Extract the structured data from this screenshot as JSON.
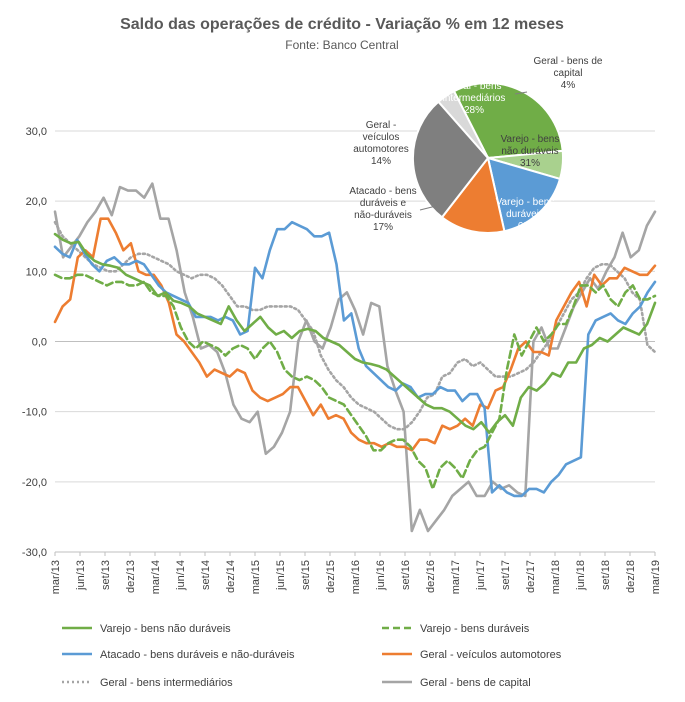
{
  "chart_data": {
    "type": "line",
    "title": "Saldo das operações de crédito - Variação % em 12 meses",
    "subtitle": "Fonte: Banco Central",
    "ylim": [
      -30,
      30
    ],
    "yticks": [
      30,
      20,
      10,
      0,
      -10,
      -20,
      -30
    ],
    "ytick_labels": [
      "30,0",
      "20,0",
      "10,0",
      "0,0",
      "-10,0",
      "-20,0",
      "-30,0"
    ],
    "x_labels": [
      "mar/13",
      "jun/13",
      "set/13",
      "dez/13",
      "mar/14",
      "jun/14",
      "set/14",
      "dez/14",
      "mar/15",
      "jun/15",
      "set/15",
      "dez/15",
      "mar/16",
      "jun/16",
      "set/16",
      "dez/16",
      "mar/17",
      "jun/17",
      "set/17",
      "dez/17",
      "mar/18",
      "jun/18",
      "set/18",
      "dez/18",
      "mar/19"
    ],
    "grid": true,
    "legend_position": "bottom",
    "series": [
      {
        "name": "Varejo - bens não duráveis",
        "color": "#70AD47",
        "dash": "solid",
        "values": [
          15.3,
          14.5,
          14,
          14.2,
          12.5,
          11.5,
          11,
          10.8,
          10.5,
          9.5,
          9,
          8.5,
          8,
          6.5,
          7,
          5.8,
          5.5,
          5,
          4,
          3.5,
          3,
          2.5,
          5,
          3,
          1.5,
          2.5,
          3.5,
          2,
          1,
          1.5,
          0.5,
          1.5,
          1.8,
          1.5,
          0.5,
          0,
          -0.5,
          -1.5,
          -2.5,
          -3,
          -3.2,
          -3.5,
          -4,
          -5,
          -6,
          -7,
          -8,
          -9,
          -9.5,
          -9.5,
          -10,
          -11,
          -12,
          -12.5,
          -11.5,
          -13,
          -11.5,
          -10.5,
          -12,
          -8,
          -6.5,
          -7,
          -6,
          -4.5,
          -5,
          -3,
          -3,
          -1,
          -0.5,
          0.5,
          0,
          1,
          2,
          1.5,
          1,
          2.5,
          5.5
        ]
      },
      {
        "name": "Varejo - bens duráveis",
        "color": "#70AD47",
        "dash": "dashed",
        "values": [
          9.5,
          9,
          9,
          9.5,
          9.5,
          9,
          8.5,
          8,
          8.5,
          8.5,
          8,
          8,
          8.5,
          7,
          6.5,
          6.5,
          5,
          2,
          0,
          -1,
          0,
          -0.5,
          -1,
          -2,
          -1,
          -0.5,
          -1,
          -2.5,
          -1,
          0,
          -1.5,
          -4,
          -5,
          -5.5,
          -5,
          -5.5,
          -6.5,
          -8,
          -8.5,
          -9,
          -10.5,
          -12,
          -13.5,
          -15.5,
          -15.5,
          -14.5,
          -14,
          -14,
          -15,
          -17,
          -18,
          -21,
          -18,
          -17,
          -18,
          -19.5,
          -17,
          -15.5,
          -15,
          -13,
          -11,
          -4,
          1,
          -2,
          0,
          2,
          0,
          1,
          2.5,
          2.5,
          5,
          8,
          8,
          7,
          8,
          6,
          5,
          7,
          8,
          6,
          6,
          6.5
        ]
      },
      {
        "name": "Atacado - bens duráveis e não-duráveis",
        "color": "#5B9BD5",
        "dash": "solid",
        "values": [
          13.5,
          12.5,
          12,
          14.5,
          12.5,
          11,
          10,
          11.5,
          12,
          11,
          11,
          11.5,
          11,
          9.5,
          8,
          7,
          6.5,
          6,
          5.5,
          3.5,
          3.5,
          3.5,
          3,
          3.5,
          3,
          1,
          1.5,
          10.5,
          9,
          13,
          16,
          16,
          17,
          16.5,
          16,
          15,
          15,
          15.5,
          11,
          3,
          4,
          -1,
          -3.5,
          -4.5,
          -5.5,
          -6.5,
          -7,
          -6,
          -6.5,
          -8,
          -7.5,
          -7.5,
          -6.5,
          -7,
          -7,
          -8.5,
          -7.5,
          -7.5,
          -9.5,
          -21.5,
          -20.5,
          -21.5,
          -22,
          -22,
          -21,
          -21,
          -21.5,
          -20,
          -19,
          -17.5,
          -17,
          -16.5,
          1,
          3,
          3.5,
          4,
          3,
          2.5,
          4,
          5,
          7,
          8.5
        ]
      },
      {
        "name": "Geral - veículos automotores",
        "color": "#ED7D31",
        "dash": "solid",
        "values": [
          2.8,
          5,
          6,
          12,
          13,
          12,
          17.5,
          17.5,
          15.5,
          13,
          14,
          10,
          9.5,
          9.5,
          8,
          5.5,
          1,
          0,
          -1.5,
          -3,
          -5,
          -4,
          -4.5,
          -5,
          -4,
          -4.5,
          -7,
          -8,
          -8.5,
          -8,
          -7.5,
          -6.5,
          -6.5,
          -8.5,
          -10.5,
          -9,
          -11,
          -10.5,
          -11,
          -13,
          -14,
          -14.5,
          -14.5,
          -15,
          -14.5,
          -15,
          -15,
          -15.5,
          -14,
          -14,
          -14.5,
          -12,
          -12.5,
          -12,
          -11,
          -12,
          -9,
          -9.5,
          -7,
          -6.5,
          -4,
          -1,
          0,
          -1.5,
          -1.5,
          -2,
          3,
          5,
          7,
          8.5,
          5,
          9.5,
          8,
          9,
          9,
          10.5,
          10,
          9.5,
          9.5,
          10.8
        ]
      },
      {
        "name": "Geral - bens intermediários",
        "color": "#A5A5A5",
        "dash": "dotted",
        "values": [
          17,
          15,
          14,
          13,
          12,
          11,
          10.5,
          10,
          10,
          11,
          12,
          12.5,
          12.5,
          12,
          11.5,
          11,
          10,
          9.5,
          9,
          9.5,
          9.5,
          9,
          8,
          6.5,
          5,
          5,
          4.5,
          4.5,
          5,
          5,
          5,
          5,
          4.5,
          3,
          1.5,
          -2,
          -4,
          -5.5,
          -6.5,
          -8,
          -9,
          -9.5,
          -10,
          -11,
          -12,
          -12.5,
          -12.5,
          -11.5,
          -10,
          -8,
          -7.5,
          -5,
          -4.5,
          -3,
          -2.5,
          -3.5,
          -3,
          -4,
          -5,
          -5,
          -5,
          -4.5,
          -4,
          -3,
          -1.5,
          0,
          2,
          4,
          6,
          7,
          9,
          10.5,
          11,
          11,
          10,
          9,
          7,
          6,
          -0.5,
          -1.5
        ]
      },
      {
        "name": "Geral - bens de capital",
        "color": "#A5A5A5",
        "dash": "solid",
        "values": [
          18.5,
          12,
          13.5,
          15,
          17,
          18.5,
          20.5,
          18,
          22,
          21.5,
          21.5,
          20.5,
          22.5,
          17.5,
          17.5,
          13,
          7,
          3.5,
          -1,
          -0.5,
          -1.5,
          -4.5,
          -9,
          -11,
          -11.5,
          -10,
          -16,
          -15,
          -13,
          -10,
          0,
          3,
          0,
          -1,
          2,
          6,
          7,
          4.5,
          1,
          5.5,
          5,
          -3.5,
          -7,
          -10,
          -27,
          -24,
          -27,
          -25.5,
          -24,
          -22,
          -21,
          -20,
          -22,
          -22,
          -20,
          -21,
          -20.5,
          -21.5,
          -22,
          0,
          2,
          -1,
          -1,
          2,
          5,
          7,
          9,
          7.5,
          10,
          12,
          15.5,
          12,
          13,
          16.5,
          18.5
        ]
      }
    ],
    "inset_pie": {
      "type": "pie",
      "slices": [
        {
          "label": "Varejo - bens não duráveis",
          "value": 31,
          "pct": "31%",
          "color": "#70AD47",
          "label_color": "#404040"
        },
        {
          "label": "Varejo - bens duráveis",
          "value": 6,
          "pct": "6%",
          "color": "#A9D18E",
          "label_color": "#ffffff"
        },
        {
          "label": "Atacado - bens duráveis e não-duráveis",
          "value": 17,
          "pct": "17%",
          "color": "#5B9BD5",
          "label_color": "#404040"
        },
        {
          "label": "Geral - veículos automotores",
          "value": 14,
          "pct": "14%",
          "color": "#ED7D31",
          "label_color": "#404040"
        },
        {
          "label": "Geral - bens intermediários",
          "value": 28,
          "pct": "28%",
          "color": "#7F7F7F",
          "label_color": "#ffffff"
        },
        {
          "label": "Geral - bens de capital",
          "value": 4,
          "pct": "4%",
          "color": "#D9D9D9",
          "label_color": "#404040"
        }
      ]
    }
  }
}
